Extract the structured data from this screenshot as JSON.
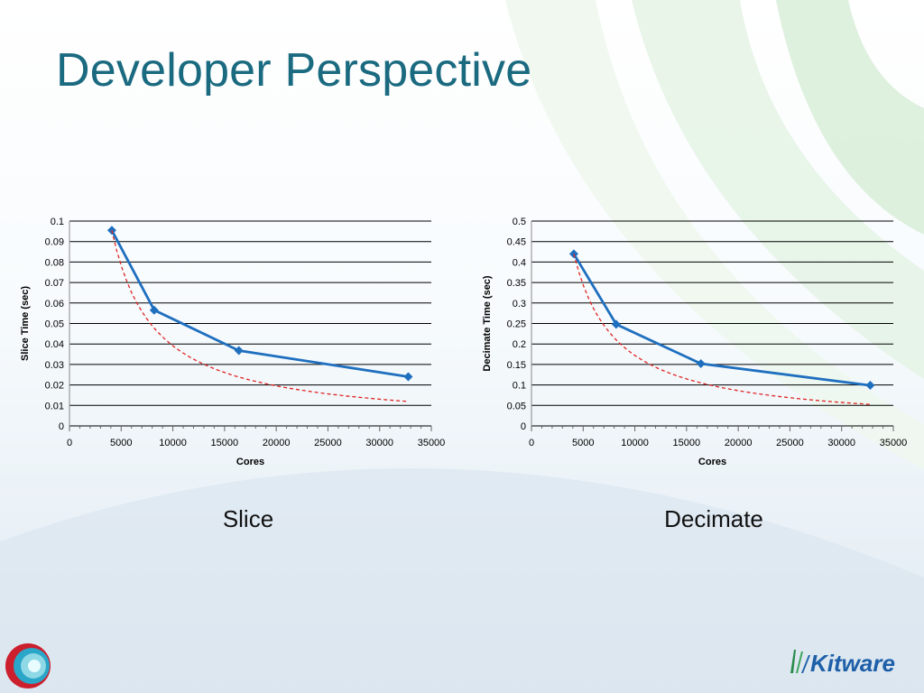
{
  "slide": {
    "title": "Developer Perspective"
  },
  "captions": {
    "slice": "Slice",
    "decimate": "Decimate"
  },
  "logos": {
    "right_text": "Kitware",
    "left_icon": "circular-gradient-logo-icon",
    "right_icon": "kitware-logo-icon"
  },
  "colors": {
    "title": "#1a6a80",
    "series": "#1f6fbf",
    "ideal": "#e02424",
    "grid": "#000000"
  },
  "chart_data": [
    {
      "type": "line",
      "xlabel": "Cores",
      "ylabel": "Slice Time (sec)",
      "xlim": [
        0,
        35000
      ],
      "ylim": [
        0,
        0.1
      ],
      "xticks": [
        0,
        5000,
        10000,
        15000,
        20000,
        25000,
        30000,
        35000
      ],
      "yticks": [
        0,
        0.01,
        0.02,
        0.03,
        0.04,
        0.05,
        0.06,
        0.07,
        0.08,
        0.09,
        0.1
      ],
      "grid": "horizontal",
      "series": [
        {
          "style": "solid-marker",
          "x": [
            4096,
            8192,
            16384,
            32768
          ],
          "y": [
            0.0955,
            0.0565,
            0.0368,
            0.024
          ]
        },
        {
          "style": "dashed",
          "x": [
            4096,
            8192,
            16384,
            32768
          ],
          "y": [
            0.0955,
            0.0478,
            0.0239,
            0.0119
          ]
        }
      ]
    },
    {
      "type": "line",
      "xlabel": "Cores",
      "ylabel": "Decimate Time (sec)",
      "xlim": [
        0,
        35000
      ],
      "ylim": [
        0,
        0.5
      ],
      "xticks": [
        0,
        5000,
        10000,
        15000,
        20000,
        25000,
        30000,
        35000
      ],
      "yticks": [
        0,
        0.05,
        0.1,
        0.15,
        0.2,
        0.25,
        0.3,
        0.35,
        0.4,
        0.45,
        0.5
      ],
      "grid": "horizontal",
      "series": [
        {
          "style": "solid-marker",
          "x": [
            4096,
            8192,
            16384,
            32768
          ],
          "y": [
            0.42,
            0.248,
            0.152,
            0.099
          ]
        },
        {
          "style": "dashed",
          "x": [
            4096,
            8192,
            16384,
            32768
          ],
          "y": [
            0.42,
            0.21,
            0.105,
            0.0525
          ]
        }
      ]
    }
  ]
}
